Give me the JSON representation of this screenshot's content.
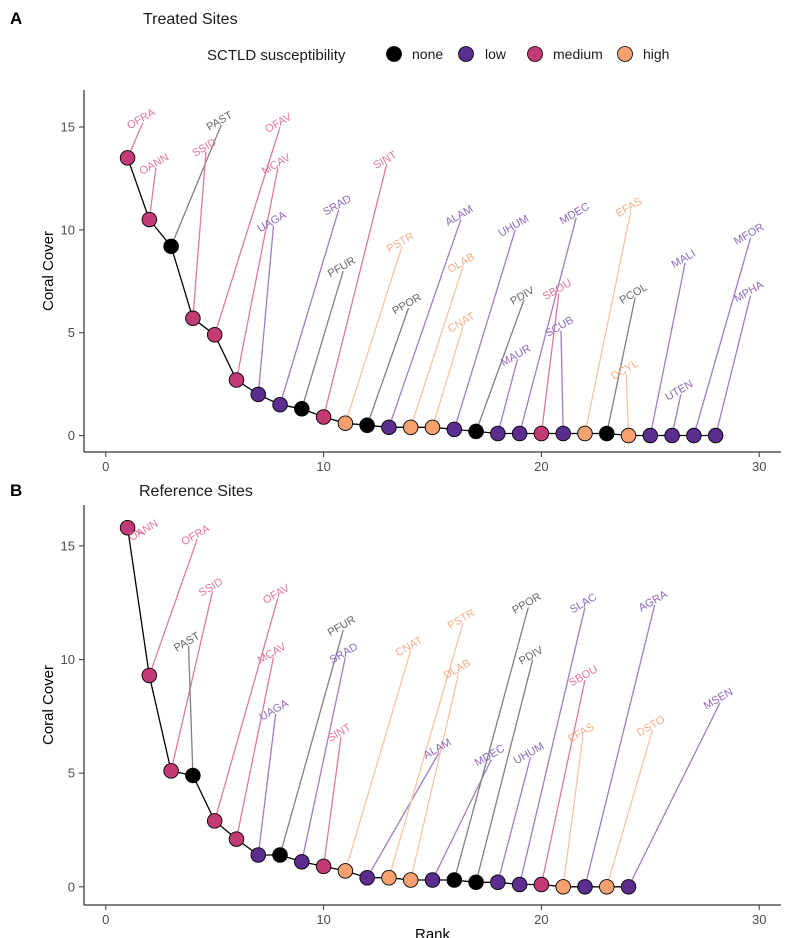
{
  "legend": {
    "title": "SCTLD susceptibility",
    "entries": [
      {
        "key": "none",
        "label": "none"
      },
      {
        "key": "low",
        "label": "low"
      },
      {
        "key": "medium",
        "label": "medium"
      },
      {
        "key": "high",
        "label": "high"
      }
    ]
  },
  "colors": {
    "none": "#000000",
    "low": "#5b2d8e",
    "medium": "#c23b75",
    "high": "#f7a26e",
    "line_none": "#7f7f7f",
    "line_low": "#9c7ec4",
    "line_medium": "#e07a9b",
    "line_high": "#f8c39e",
    "text_none": "#666666",
    "text_low": "#8a66bb",
    "text_medium": "#e2759a",
    "text_high": "#f5ad83"
  },
  "chart_data": [
    {
      "type": "scatter",
      "panel": "A",
      "title": "Treated Sites",
      "xlabel": "",
      "ylabel": "Coral Cover",
      "xlim": [
        -1,
        31
      ],
      "ylim": [
        -0.8,
        16.8
      ],
      "xticks": [
        0,
        10,
        20,
        30
      ],
      "yticks": [
        0,
        5,
        10,
        15
      ],
      "points": [
        {
          "rank": 1,
          "cover": 13.5,
          "species": "OFRA",
          "susceptibility": "medium"
        },
        {
          "rank": 2,
          "cover": 10.5,
          "species": "OANN",
          "susceptibility": "medium"
        },
        {
          "rank": 3,
          "cover": 9.2,
          "species": "PAST",
          "susceptibility": "none"
        },
        {
          "rank": 4,
          "cover": 5.7,
          "species": "SSID",
          "susceptibility": "medium"
        },
        {
          "rank": 5,
          "cover": 4.9,
          "species": "OFAV",
          "susceptibility": "medium"
        },
        {
          "rank": 6,
          "cover": 2.7,
          "species": "MCAV",
          "susceptibility": "medium"
        },
        {
          "rank": 7,
          "cover": 2.0,
          "species": "UAGA",
          "susceptibility": "low"
        },
        {
          "rank": 8,
          "cover": 1.5,
          "species": "SRAD",
          "susceptibility": "low"
        },
        {
          "rank": 9,
          "cover": 1.3,
          "species": "PFUR",
          "susceptibility": "none"
        },
        {
          "rank": 10,
          "cover": 0.9,
          "species": "SINT",
          "susceptibility": "medium"
        },
        {
          "rank": 11,
          "cover": 0.6,
          "species": "PSTR",
          "susceptibility": "high"
        },
        {
          "rank": 12,
          "cover": 0.5,
          "species": "PPOR",
          "susceptibility": "none"
        },
        {
          "rank": 13,
          "cover": 0.4,
          "species": "ALAM",
          "susceptibility": "low"
        },
        {
          "rank": 14,
          "cover": 0.4,
          "species": "DLAB",
          "susceptibility": "high"
        },
        {
          "rank": 15,
          "cover": 0.4,
          "species": "CNAT",
          "susceptibility": "high"
        },
        {
          "rank": 16,
          "cover": 0.3,
          "species": "UHUM",
          "susceptibility": "low"
        },
        {
          "rank": 17,
          "cover": 0.2,
          "species": "PDIV",
          "susceptibility": "none"
        },
        {
          "rank": 18,
          "cover": 0.1,
          "species": "MAUR",
          "susceptibility": "low"
        },
        {
          "rank": 19,
          "cover": 0.1,
          "species": "MDEC",
          "susceptibility": "low"
        },
        {
          "rank": 20,
          "cover": 0.1,
          "species": "SBOU",
          "susceptibility": "medium"
        },
        {
          "rank": 21,
          "cover": 0.1,
          "species": "SCUB",
          "susceptibility": "low"
        },
        {
          "rank": 22,
          "cover": 0.1,
          "species": "EFAS",
          "susceptibility": "high"
        },
        {
          "rank": 23,
          "cover": 0.1,
          "species": "PCOL",
          "susceptibility": "none"
        },
        {
          "rank": 24,
          "cover": 0.0,
          "species": "DCYL",
          "susceptibility": "high"
        },
        {
          "rank": 25,
          "cover": 0.0,
          "species": "MALI",
          "susceptibility": "low"
        },
        {
          "rank": 26,
          "cover": 0.0,
          "species": "UTEN",
          "susceptibility": "low"
        },
        {
          "rank": 27,
          "cover": 0.0,
          "species": "MFOR",
          "susceptibility": "low"
        },
        {
          "rank": 28,
          "cover": 0.0,
          "species": "MPHA",
          "susceptibility": "low"
        }
      ]
    },
    {
      "type": "scatter",
      "panel": "B",
      "title": "Reference Sites",
      "xlabel": "Rank",
      "ylabel": "Coral Cover",
      "xlim": [
        -1,
        31
      ],
      "ylim": [
        -0.8,
        16.8
      ],
      "xticks": [
        0,
        10,
        20,
        30
      ],
      "yticks": [
        0,
        5,
        10,
        15
      ],
      "points": [
        {
          "rank": 1,
          "cover": 15.8,
          "species": "OANN",
          "susceptibility": "medium"
        },
        {
          "rank": 2,
          "cover": 9.3,
          "species": "OFRA",
          "susceptibility": "medium"
        },
        {
          "rank": 3,
          "cover": 5.1,
          "species": "SSID",
          "susceptibility": "medium"
        },
        {
          "rank": 4,
          "cover": 4.9,
          "species": "PAST",
          "susceptibility": "none"
        },
        {
          "rank": 5,
          "cover": 2.9,
          "species": "OFAV",
          "susceptibility": "medium"
        },
        {
          "rank": 6,
          "cover": 2.1,
          "species": "MCAV",
          "susceptibility": "medium"
        },
        {
          "rank": 7,
          "cover": 1.4,
          "species": "UAGA",
          "susceptibility": "low"
        },
        {
          "rank": 8,
          "cover": 1.4,
          "species": "PFUR",
          "susceptibility": "none"
        },
        {
          "rank": 9,
          "cover": 1.1,
          "species": "SRAD",
          "susceptibility": "low"
        },
        {
          "rank": 10,
          "cover": 0.9,
          "species": "SINT",
          "susceptibility": "medium"
        },
        {
          "rank": 11,
          "cover": 0.7,
          "species": "CNAT",
          "susceptibility": "high"
        },
        {
          "rank": 12,
          "cover": 0.4,
          "species": "ALAM",
          "susceptibility": "low"
        },
        {
          "rank": 13,
          "cover": 0.4,
          "species": "PSTR",
          "susceptibility": "high"
        },
        {
          "rank": 14,
          "cover": 0.3,
          "species": "DLAB",
          "susceptibility": "high"
        },
        {
          "rank": 15,
          "cover": 0.3,
          "species": "MDEC",
          "susceptibility": "low"
        },
        {
          "rank": 16,
          "cover": 0.3,
          "species": "PPOR",
          "susceptibility": "none"
        },
        {
          "rank": 17,
          "cover": 0.2,
          "species": "PDIV",
          "susceptibility": "none"
        },
        {
          "rank": 18,
          "cover": 0.2,
          "species": "UHUM",
          "susceptibility": "low"
        },
        {
          "rank": 19,
          "cover": 0.1,
          "species": "SLAC",
          "susceptibility": "low"
        },
        {
          "rank": 20,
          "cover": 0.1,
          "species": "SBOU",
          "susceptibility": "medium"
        },
        {
          "rank": 21,
          "cover": 0.0,
          "species": "EFAS",
          "susceptibility": "high"
        },
        {
          "rank": 22,
          "cover": 0.0,
          "species": "AGRA",
          "susceptibility": "low"
        },
        {
          "rank": 23,
          "cover": 0.0,
          "species": "DSTO",
          "susceptibility": "high"
        },
        {
          "rank": 24,
          "cover": 0.0,
          "species": "MSEN",
          "susceptibility": "low"
        }
      ]
    }
  ]
}
